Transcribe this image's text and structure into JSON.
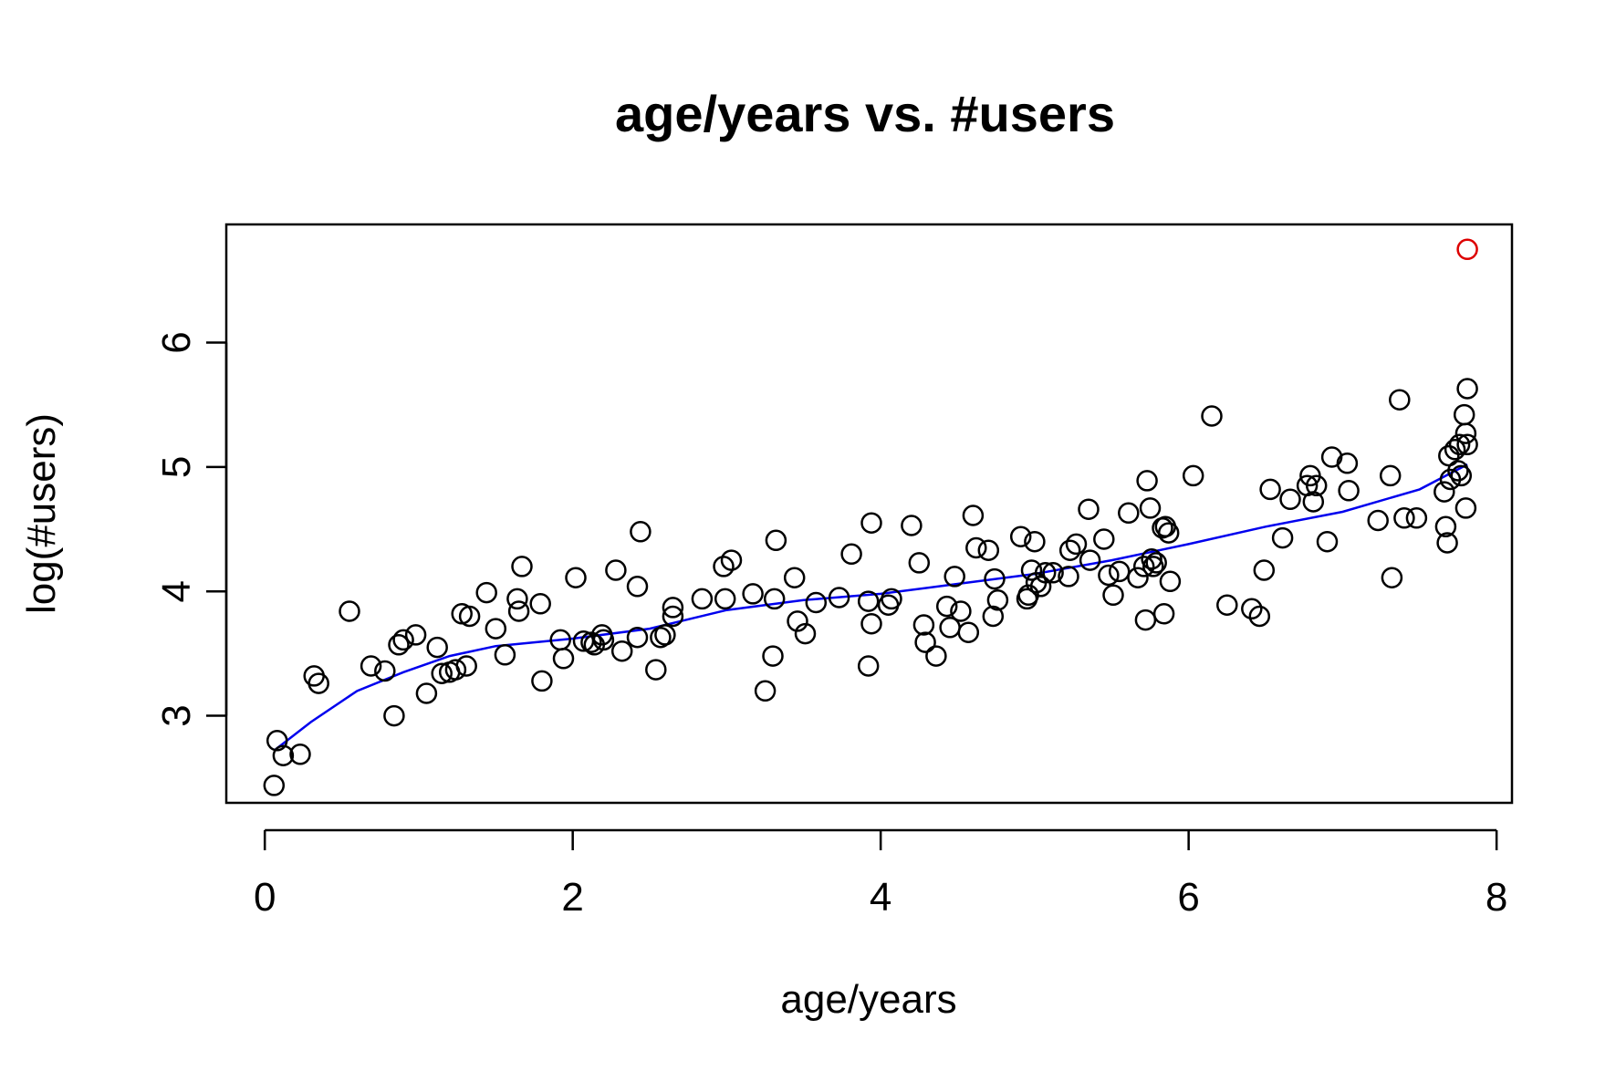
{
  "chart_data": {
    "type": "scatter",
    "title": "age/years vs. #users",
    "xlabel": "age/years",
    "ylabel": "log(#users)",
    "xlim": [
      -0.25,
      8.1
    ],
    "ylim": [
      2.3,
      6.95
    ],
    "x_ticks": [
      0,
      2,
      4,
      6,
      8
    ],
    "x_tick_labels": [
      "0",
      "2",
      "4",
      "6",
      "8"
    ],
    "y_ticks": [
      3,
      4,
      5,
      6
    ],
    "y_tick_labels": [
      "3",
      "4",
      "5",
      "6"
    ],
    "grid": false,
    "colors": {
      "points": "#000000",
      "highlight": "#dd0000",
      "fit_line": "#0000ee",
      "frame": "#000000"
    },
    "points": [
      [
        0.06,
        2.44
      ],
      [
        0.08,
        2.8
      ],
      [
        0.12,
        2.68
      ],
      [
        0.23,
        2.69
      ],
      [
        0.32,
        3.32
      ],
      [
        0.35,
        3.26
      ],
      [
        0.55,
        3.84
      ],
      [
        0.69,
        3.4
      ],
      [
        0.78,
        3.36
      ],
      [
        0.84,
        3.0
      ],
      [
        0.87,
        3.57
      ],
      [
        0.9,
        3.61
      ],
      [
        0.98,
        3.65
      ],
      [
        1.05,
        3.18
      ],
      [
        1.12,
        3.55
      ],
      [
        1.15,
        3.34
      ],
      [
        1.2,
        3.35
      ],
      [
        1.24,
        3.37
      ],
      [
        1.28,
        3.82
      ],
      [
        1.31,
        3.4
      ],
      [
        1.33,
        3.8
      ],
      [
        1.44,
        3.99
      ],
      [
        1.5,
        3.7
      ],
      [
        1.56,
        3.49
      ],
      [
        1.64,
        3.94
      ],
      [
        1.65,
        3.84
      ],
      [
        1.67,
        4.2
      ],
      [
        1.79,
        3.9
      ],
      [
        1.8,
        3.28
      ],
      [
        1.92,
        3.61
      ],
      [
        1.94,
        3.46
      ],
      [
        2.02,
        4.11
      ],
      [
        2.07,
        3.6
      ],
      [
        2.12,
        3.59
      ],
      [
        2.14,
        3.57
      ],
      [
        2.19,
        3.65
      ],
      [
        2.2,
        3.61
      ],
      [
        2.28,
        4.17
      ],
      [
        2.32,
        3.52
      ],
      [
        2.42,
        4.04
      ],
      [
        2.42,
        3.63
      ],
      [
        2.44,
        4.48
      ],
      [
        2.54,
        3.37
      ],
      [
        2.57,
        3.63
      ],
      [
        2.6,
        3.65
      ],
      [
        2.65,
        3.87
      ],
      [
        2.65,
        3.8
      ],
      [
        2.84,
        3.94
      ],
      [
        2.98,
        4.2
      ],
      [
        2.99,
        3.94
      ],
      [
        3.03,
        4.25
      ],
      [
        3.17,
        3.98
      ],
      [
        3.25,
        3.2
      ],
      [
        3.3,
        3.48
      ],
      [
        3.31,
        3.94
      ],
      [
        3.32,
        4.41
      ],
      [
        3.44,
        4.11
      ],
      [
        3.46,
        3.76
      ],
      [
        3.51,
        3.66
      ],
      [
        3.58,
        3.91
      ],
      [
        3.73,
        3.95
      ],
      [
        3.81,
        4.3
      ],
      [
        3.92,
        3.92
      ],
      [
        3.92,
        3.4
      ],
      [
        3.94,
        3.74
      ],
      [
        3.94,
        4.55
      ],
      [
        4.05,
        3.89
      ],
      [
        4.07,
        3.94
      ],
      [
        4.2,
        4.53
      ],
      [
        4.25,
        4.23
      ],
      [
        4.28,
        3.73
      ],
      [
        4.29,
        3.59
      ],
      [
        4.36,
        3.48
      ],
      [
        4.43,
        3.88
      ],
      [
        4.45,
        3.71
      ],
      [
        4.48,
        4.12
      ],
      [
        4.52,
        3.84
      ],
      [
        4.57,
        3.67
      ],
      [
        4.6,
        4.61
      ],
      [
        4.62,
        4.35
      ],
      [
        4.7,
        4.33
      ],
      [
        4.73,
        3.8
      ],
      [
        4.74,
        4.1
      ],
      [
        4.76,
        3.93
      ],
      [
        4.91,
        4.44
      ],
      [
        4.95,
        3.94
      ],
      [
        4.96,
        3.97
      ],
      [
        4.98,
        4.17
      ],
      [
        5.0,
        4.4
      ],
      [
        5.01,
        4.07
      ],
      [
        5.04,
        4.04
      ],
      [
        5.07,
        4.15
      ],
      [
        5.12,
        4.15
      ],
      [
        5.22,
        4.12
      ],
      [
        5.23,
        4.33
      ],
      [
        5.27,
        4.38
      ],
      [
        5.35,
        4.66
      ],
      [
        5.36,
        4.25
      ],
      [
        5.45,
        4.42
      ],
      [
        5.48,
        4.13
      ],
      [
        5.51,
        3.97
      ],
      [
        5.55,
        4.16
      ],
      [
        5.61,
        4.63
      ],
      [
        5.67,
        4.11
      ],
      [
        5.71,
        4.2
      ],
      [
        5.72,
        3.77
      ],
      [
        5.73,
        4.89
      ],
      [
        5.75,
        4.67
      ],
      [
        5.76,
        4.26
      ],
      [
        5.77,
        4.2
      ],
      [
        5.79,
        4.23
      ],
      [
        5.83,
        4.51
      ],
      [
        5.84,
        3.82
      ],
      [
        5.85,
        4.52
      ],
      [
        5.87,
        4.47
      ],
      [
        5.88,
        4.08
      ],
      [
        6.03,
        4.93
      ],
      [
        6.15,
        5.41
      ],
      [
        6.25,
        3.89
      ],
      [
        6.41,
        3.86
      ],
      [
        6.46,
        3.8
      ],
      [
        6.49,
        4.17
      ],
      [
        6.53,
        4.82
      ],
      [
        6.61,
        4.43
      ],
      [
        6.66,
        4.74
      ],
      [
        6.77,
        4.85
      ],
      [
        6.79,
        4.93
      ],
      [
        6.81,
        4.72
      ],
      [
        6.83,
        4.85
      ],
      [
        6.9,
        4.4
      ],
      [
        6.93,
        5.08
      ],
      [
        7.03,
        5.03
      ],
      [
        7.04,
        4.81
      ],
      [
        7.23,
        4.57
      ],
      [
        7.31,
        4.93
      ],
      [
        7.32,
        4.11
      ],
      [
        7.37,
        5.54
      ],
      [
        7.4,
        4.59
      ],
      [
        7.48,
        4.59
      ],
      [
        7.66,
        4.8
      ],
      [
        7.67,
        4.52
      ],
      [
        7.68,
        4.39
      ],
      [
        7.69,
        5.09
      ],
      [
        7.7,
        4.9
      ],
      [
        7.73,
        5.14
      ],
      [
        7.75,
        4.97
      ],
      [
        7.76,
        5.18
      ],
      [
        7.77,
        4.93
      ],
      [
        7.79,
        5.42
      ],
      [
        7.8,
        4.67
      ],
      [
        7.8,
        5.27
      ],
      [
        7.81,
        5.18
      ],
      [
        7.81,
        5.63
      ]
    ],
    "highlight_points": [
      [
        7.81,
        6.75
      ]
    ],
    "fit_line": [
      [
        0.06,
        2.72
      ],
      [
        0.3,
        2.95
      ],
      [
        0.6,
        3.2
      ],
      [
        0.9,
        3.35
      ],
      [
        1.2,
        3.48
      ],
      [
        1.5,
        3.56
      ],
      [
        2.0,
        3.62
      ],
      [
        2.5,
        3.7
      ],
      [
        3.0,
        3.85
      ],
      [
        3.5,
        3.93
      ],
      [
        4.0,
        3.98
      ],
      [
        4.5,
        4.06
      ],
      [
        5.0,
        4.14
      ],
      [
        5.5,
        4.25
      ],
      [
        6.0,
        4.38
      ],
      [
        6.5,
        4.52
      ],
      [
        7.0,
        4.64
      ],
      [
        7.5,
        4.82
      ],
      [
        7.81,
        5.02
      ]
    ]
  }
}
